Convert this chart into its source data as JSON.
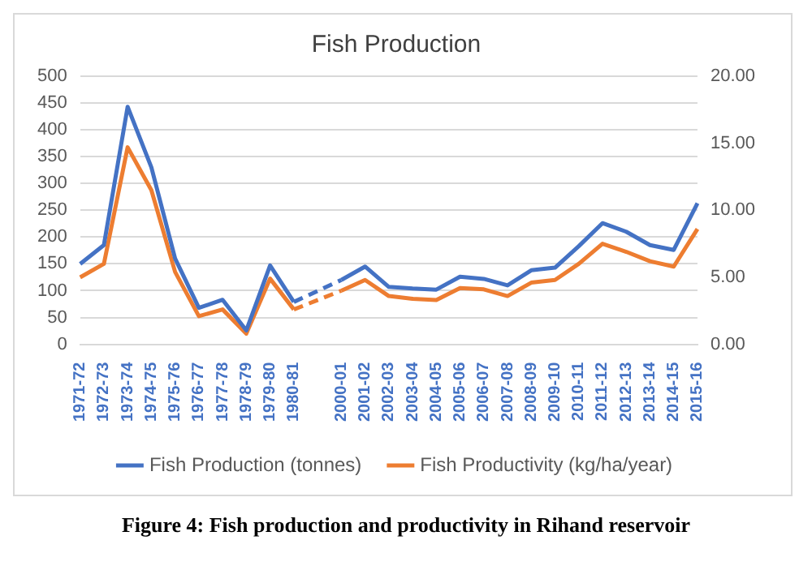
{
  "chart_data": {
    "type": "line",
    "title": "Fish Production",
    "categories": [
      "1971-72",
      "1972-73",
      "1973-74",
      "1974-75",
      "1975-76",
      "1976-77",
      "1977-78",
      "1978-79",
      "1979-80",
      "1980-81",
      null,
      "2000-01",
      "2001-02",
      "2002-03",
      "2003-04",
      "2004-05",
      "2005-06",
      "2006-07",
      "2007-08",
      "2008-09",
      "2009-10",
      "2010-11",
      "2011-12",
      "2012-13",
      "2013-14",
      "2014-15",
      "2015-16"
    ],
    "series": [
      {
        "name": "Fish Production (tonnes)",
        "color": "#4472c4",
        "values": [
          150,
          185,
          443,
          330,
          160,
          68,
          83,
          26,
          147,
          79,
          null,
          120,
          145,
          107,
          104,
          102,
          126,
          122,
          110,
          138,
          143,
          183,
          226,
          210,
          185,
          176,
          263
        ]
      },
      {
        "name": "Fish Productivity (kg/ha/year)",
        "color": "#ed7d31",
        "axis": "y2",
        "values": [
          5.0,
          6.0,
          14.7,
          11.5,
          5.4,
          2.1,
          2.6,
          0.8,
          4.9,
          2.6,
          null,
          4.0,
          4.8,
          3.6,
          3.4,
          3.3,
          4.2,
          4.1,
          3.6,
          4.6,
          4.8,
          6.0,
          7.5,
          6.9,
          6.2,
          5.8,
          8.6
        ]
      }
    ],
    "ylim": [
      0,
      500
    ],
    "yticks": [
      0,
      50,
      100,
      150,
      200,
      250,
      300,
      350,
      400,
      450,
      500
    ],
    "y2lim": [
      0,
      20
    ],
    "y2ticks": [
      {
        "value": 0,
        "label": "0.00"
      },
      {
        "value": 5,
        "label": "5.00"
      },
      {
        "value": 10,
        "label": "10.00"
      },
      {
        "value": 15,
        "label": "15.00"
      },
      {
        "value": 20,
        "label": "20.00"
      }
    ],
    "grid": "y",
    "legend": "bottom",
    "marker": "none",
    "annotations": [
      "Figure 4: Fish production and productivity in Rihand reservoir"
    ]
  }
}
